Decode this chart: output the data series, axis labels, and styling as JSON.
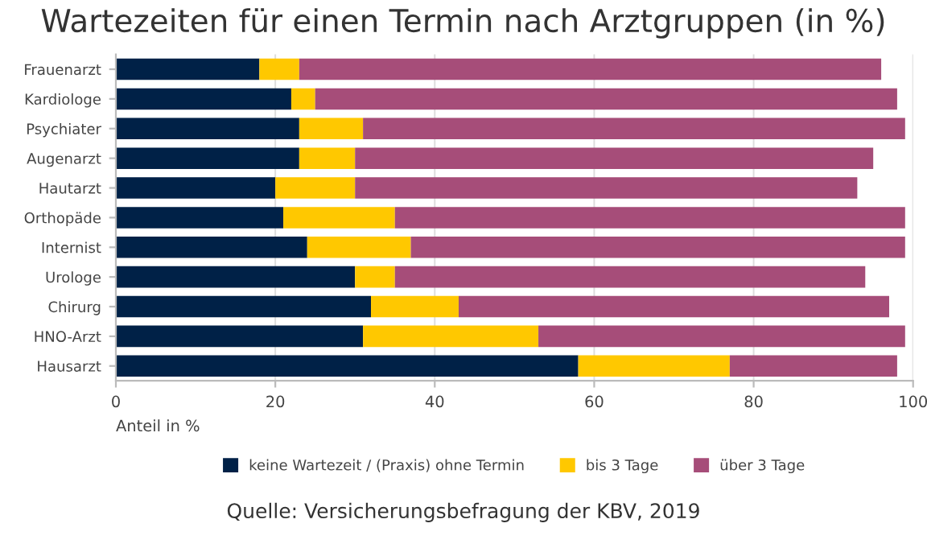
{
  "chart_data": {
    "type": "bar",
    "orientation": "horizontal",
    "stacked": true,
    "title": "Wartezeiten für einen Termin nach Arztgruppen (in %)",
    "xlabel": "Anteil in %",
    "categories": [
      "Frauenarzt",
      "Kardiologe",
      "Psychiater",
      "Augenarzt",
      "Hautarzt",
      "Orthopäde",
      "Internist",
      "Urologe",
      "Chirurg",
      "HNO-Arzt",
      "Hausarzt"
    ],
    "series": [
      {
        "name": "keine Wartezeit / (Praxis) ohne Termin",
        "color": "#002147",
        "values": [
          18,
          22,
          23,
          23,
          20,
          21,
          24,
          30,
          32,
          31,
          58
        ]
      },
      {
        "name": "bis 3 Tage",
        "color": "#ffc800",
        "values": [
          5,
          3,
          8,
          7,
          10,
          14,
          13,
          5,
          11,
          22,
          19
        ]
      },
      {
        "name": "über 3 Tage",
        "color": "#a64d79",
        "values": [
          73,
          73,
          68,
          65,
          63,
          64,
          62,
          59,
          54,
          46,
          21
        ]
      }
    ],
    "xlim": [
      0,
      100
    ],
    "xticks": [
      0,
      20,
      40,
      60,
      80,
      100
    ],
    "grid": "x",
    "legend": "bottom",
    "annotations": [
      "Quelle: Versicherungsbefragung der KBV, 2019"
    ]
  }
}
